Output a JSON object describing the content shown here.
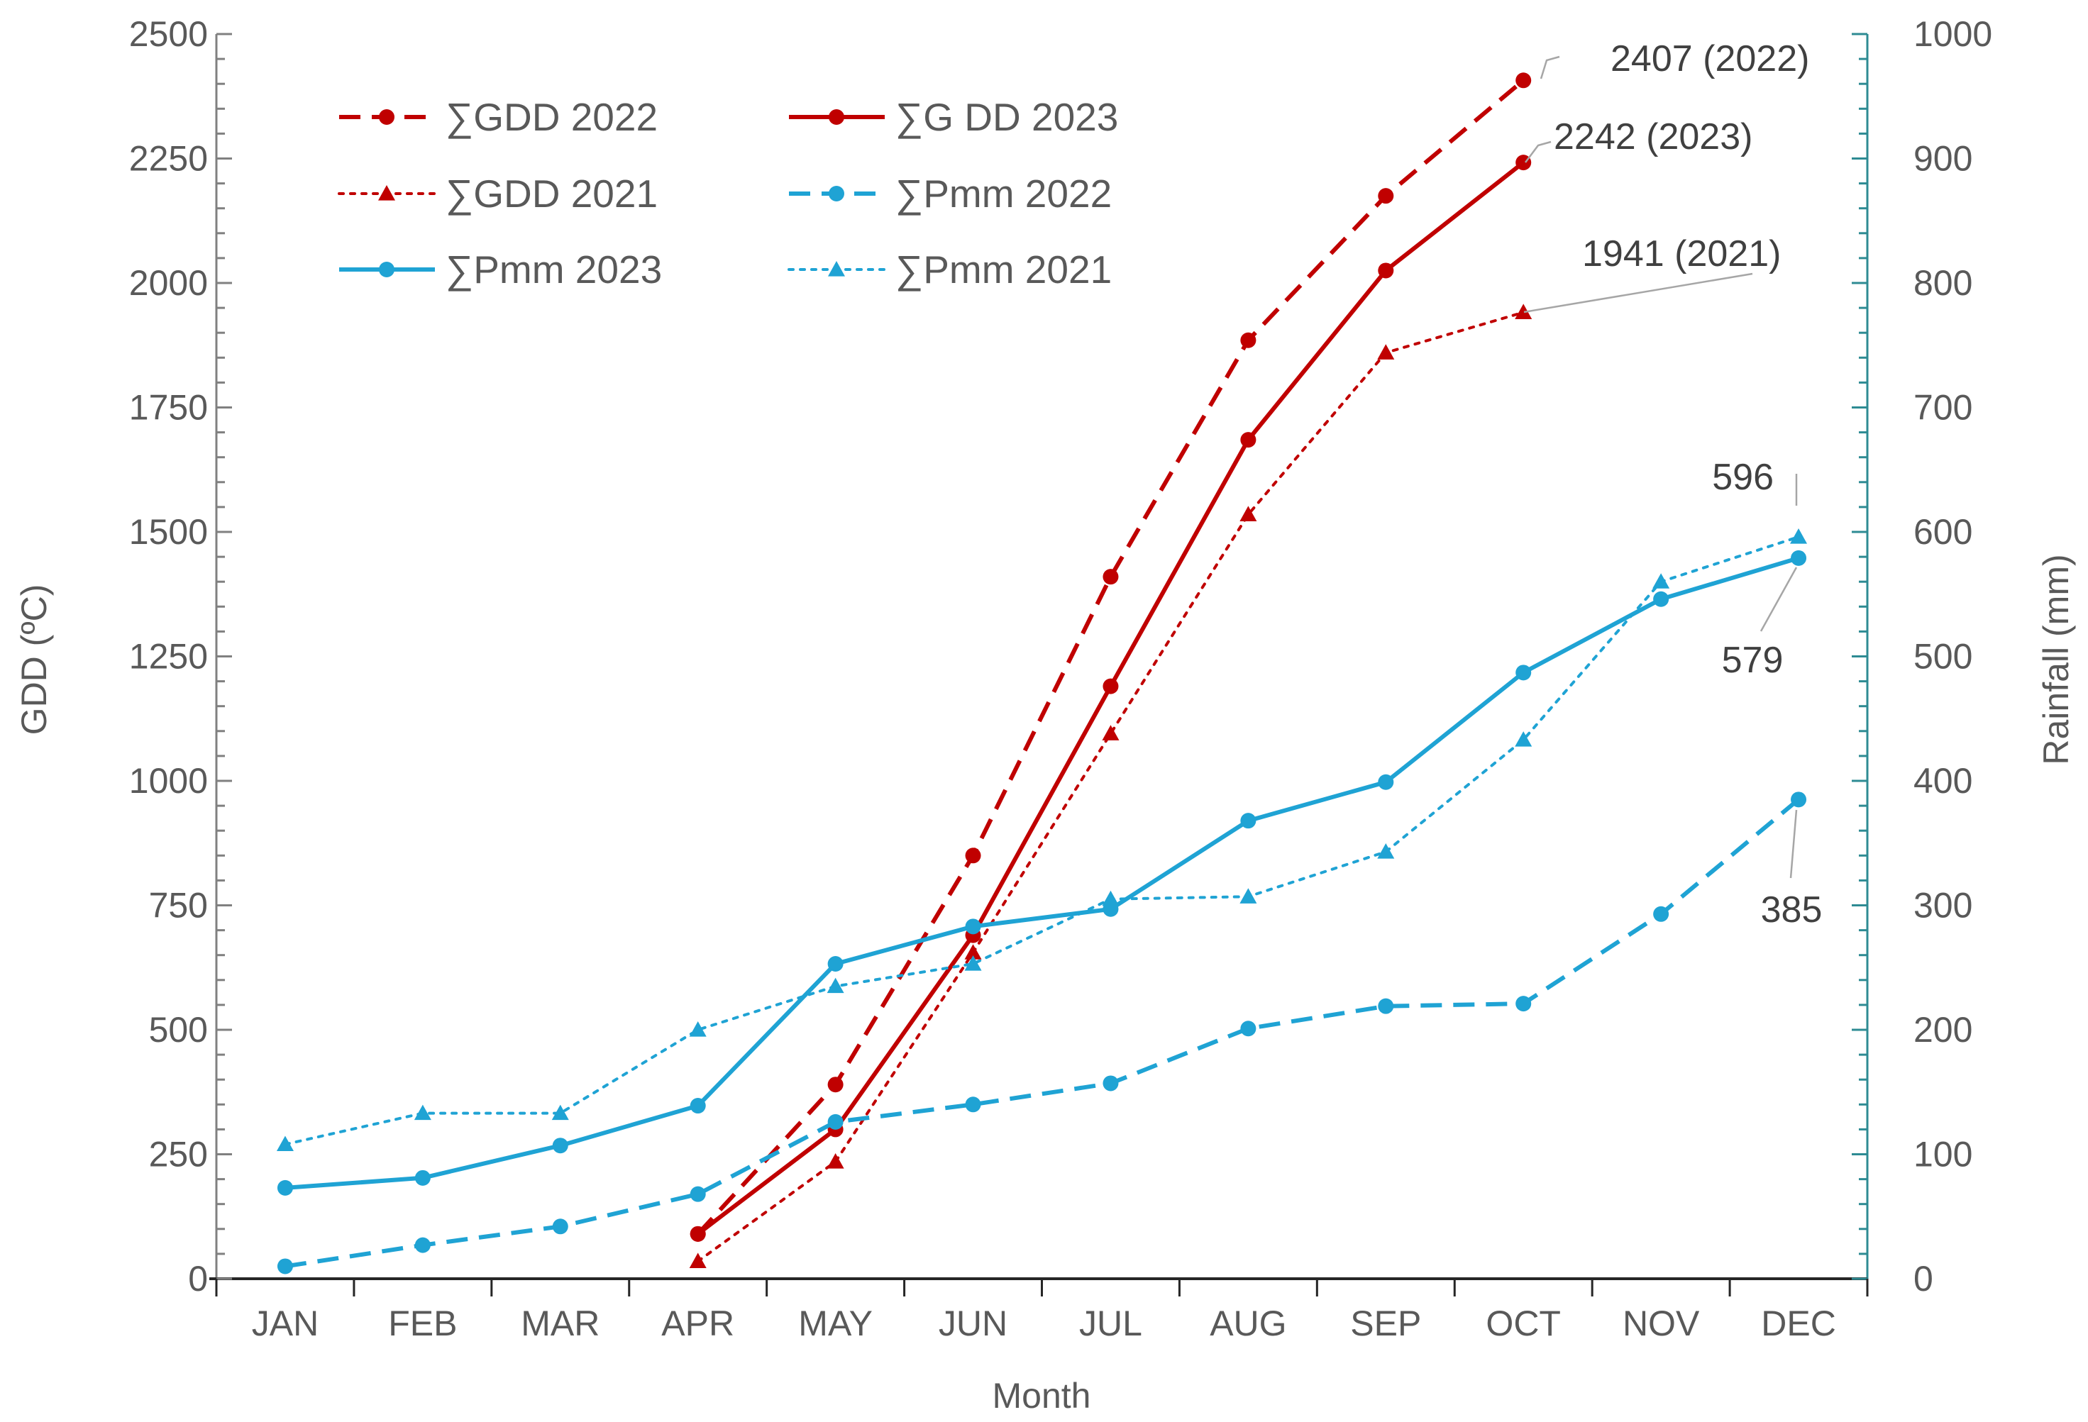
{
  "chart_data": {
    "type": "line",
    "categories": [
      "JAN",
      "FEB",
      "MAR",
      "APR",
      "MAY",
      "JUN",
      "JUL",
      "AUG",
      "SEP",
      "OCT",
      "NOV",
      "DEC"
    ],
    "xlabel": "Month",
    "ylabel_left": "GDD (ºC)",
    "ylabel_right": "Rainfall (mm)",
    "ylim_left": [
      0,
      2500
    ],
    "ylim_right": [
      0,
      1000
    ],
    "yticks_left": [
      "0",
      "250",
      "500",
      "750",
      "1000",
      "1250",
      "1500",
      "1750",
      "2000",
      "2250",
      "2500"
    ],
    "yticks_right": [
      "0",
      "100",
      "200",
      "300",
      "400",
      "500",
      "600",
      "700",
      "800",
      "900",
      "1000"
    ],
    "colors": {
      "gdd": "#C00000",
      "pmm": "#1FA3D4",
      "axis": "#808080",
      "right_axis": "#2E8B93",
      "grid": "#BFBFBF"
    },
    "series": [
      {
        "name": "∑GDD 2022",
        "axis": "left",
        "color": "#C00000",
        "dash": "dashed",
        "marker": "circle",
        "values": [
          null,
          null,
          null,
          90,
          390,
          850,
          1410,
          1885,
          2175,
          2407,
          null,
          null
        ]
      },
      {
        "name": "∑G DD 2023",
        "axis": "left",
        "color": "#C00000",
        "dash": "solid",
        "marker": "circle",
        "values": [
          null,
          null,
          null,
          90,
          300,
          690,
          1190,
          1685,
          2025,
          2242,
          null,
          null
        ]
      },
      {
        "name": "∑GDD 2021",
        "axis": "left",
        "color": "#C00000",
        "dash": "dotted",
        "marker": "triangle",
        "values": [
          null,
          null,
          null,
          35,
          235,
          655,
          1095,
          1535,
          1860,
          1941,
          null,
          null
        ]
      },
      {
        "name": "∑Pmm 2022",
        "axis": "right",
        "color": "#1FA3D4",
        "dash": "dashed",
        "marker": "circle",
        "values": [
          10,
          27,
          42,
          68,
          126,
          140,
          157,
          201,
          219,
          221,
          293,
          385
        ]
      },
      {
        "name": "∑Pmm 2023",
        "axis": "right",
        "color": "#1FA3D4",
        "dash": "solid",
        "marker": "circle",
        "values": [
          73,
          81,
          107,
          139,
          253,
          283,
          297,
          368,
          399,
          487,
          546,
          579
        ]
      },
      {
        "name": "∑Pmm 2021",
        "axis": "right",
        "color": "#1FA3D4",
        "dash": "dotted",
        "marker": "triangle",
        "values": [
          108,
          133,
          133,
          200,
          235,
          253,
          305,
          307,
          343,
          433,
          560,
          596
        ]
      }
    ],
    "annotations": [
      {
        "text": "2407 (2022)",
        "series": 0,
        "category": "OCT",
        "value": 2407,
        "axis": "left"
      },
      {
        "text": "2242 (2023)",
        "series": 1,
        "category": "OCT",
        "value": 2242,
        "axis": "left"
      },
      {
        "text": "1941 (2021)",
        "series": 2,
        "category": "OCT",
        "value": 1941,
        "axis": "left"
      },
      {
        "text": "596",
        "series": 5,
        "category": "DEC",
        "value": 596,
        "axis": "right"
      },
      {
        "text": "579",
        "series": 4,
        "category": "DEC",
        "value": 579,
        "axis": "right"
      },
      {
        "text": "385",
        "series": 3,
        "category": "DEC",
        "value": 385,
        "axis": "right"
      }
    ],
    "legend_position": "top-left"
  }
}
